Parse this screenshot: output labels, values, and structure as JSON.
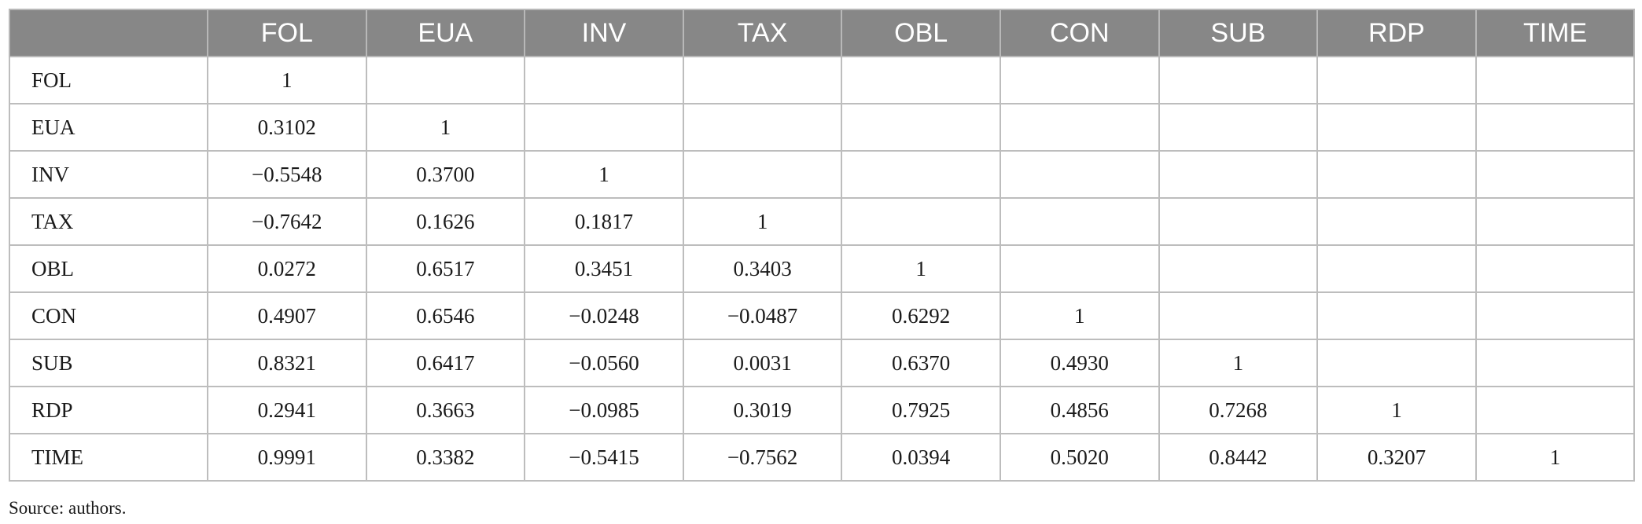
{
  "table": {
    "corner": "",
    "columns": [
      "FOL",
      "EUA",
      "INV",
      "TAX",
      "OBL",
      "CON",
      "SUB",
      "RDP",
      "TIME"
    ],
    "rows": [
      {
        "label": "FOL",
        "values": [
          "1",
          "",
          "",
          "",
          "",
          "",
          "",
          "",
          ""
        ]
      },
      {
        "label": "EUA",
        "values": [
          "0.3102",
          "1",
          "",
          "",
          "",
          "",
          "",
          "",
          ""
        ]
      },
      {
        "label": "INV",
        "values": [
          "−0.5548",
          "0.3700",
          "1",
          "",
          "",
          "",
          "",
          "",
          ""
        ]
      },
      {
        "label": "TAX",
        "values": [
          "−0.7642",
          "0.1626",
          "0.1817",
          "1",
          "",
          "",
          "",
          "",
          ""
        ]
      },
      {
        "label": "OBL",
        "values": [
          "0.0272",
          "0.6517",
          "0.3451",
          "0.3403",
          "1",
          "",
          "",
          "",
          ""
        ]
      },
      {
        "label": "CON",
        "values": [
          "0.4907",
          "0.6546",
          "−0.0248",
          "−0.0487",
          "0.6292",
          "1",
          "",
          "",
          ""
        ]
      },
      {
        "label": "SUB",
        "values": [
          "0.8321",
          "0.6417",
          "−0.0560",
          "0.0031",
          "0.6370",
          "0.4930",
          "1",
          "",
          ""
        ]
      },
      {
        "label": "RDP",
        "values": [
          "0.2941",
          "0.3663",
          "−0.0985",
          "0.3019",
          "0.7925",
          "0.4856",
          "0.7268",
          "1",
          ""
        ]
      },
      {
        "label": "TIME",
        "values": [
          "0.9991",
          "0.3382",
          "−0.5415",
          "−0.7562",
          "0.0394",
          "0.5020",
          "0.8442",
          "0.3207",
          "1"
        ]
      }
    ]
  },
  "source_note": "Source: authors.",
  "colors": {
    "header_bg": "#878787",
    "header_text": "#ffffff",
    "grid": "#bdbdbd"
  }
}
